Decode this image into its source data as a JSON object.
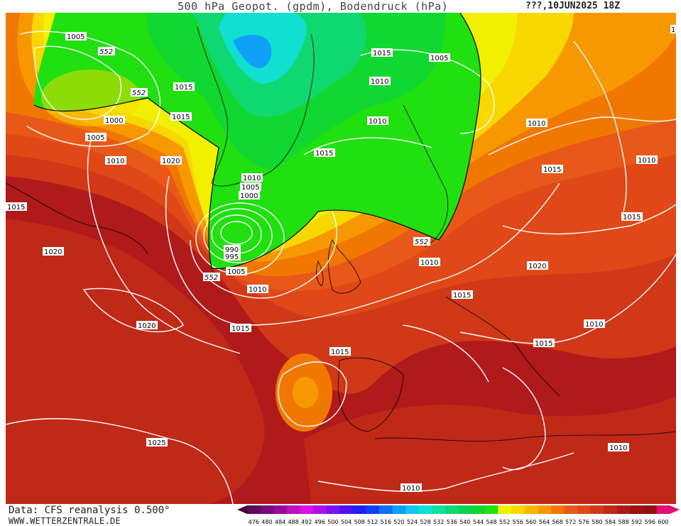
{
  "header": {
    "title": "500 hPa Geopot. (gpdm), Bodendruck (hPa)",
    "run": "???,10JUN2025 18Z"
  },
  "footer": {
    "source": "Data: CFS reanalysis 0.500°",
    "site": "WWW.WETTERZENTRALE.DE"
  },
  "legend": {
    "levels": [
      "476",
      "480",
      "484",
      "488",
      "492",
      "496",
      "500",
      "504",
      "508",
      "512",
      "516",
      "520",
      "524",
      "528",
      "532",
      "536",
      "540",
      "544",
      "548",
      "552",
      "556",
      "560",
      "564",
      "568",
      "572",
      "576",
      "580",
      "584",
      "588",
      "592",
      "596",
      "600"
    ],
    "colors": [
      "#5a0a5a",
      "#7a0a7a",
      "#9a0a9a",
      "#c010c0",
      "#e010e0",
      "#b010e8",
      "#8010f0",
      "#5010f0",
      "#2020f0",
      "#1040f8",
      "#1070f8",
      "#10a0f8",
      "#10c8f0",
      "#10e0d0",
      "#10e0a0",
      "#10d870",
      "#10d050",
      "#10d830",
      "#20e010",
      "#f0f000",
      "#f8d800",
      "#f8b800",
      "#f89800",
      "#f07800",
      "#e85818",
      "#e04818",
      "#d03818",
      "#c02818",
      "#b01818",
      "#a01010",
      "#901010",
      "#e01070"
    ]
  },
  "map": {
    "geopotential_labels": [
      "552",
      "552",
      "552",
      "552"
    ],
    "isobar_labels": [
      "1005",
      "1015",
      "1005",
      "1015",
      "1010",
      "1015",
      "1000",
      "1005",
      "1010",
      "1020",
      "1015",
      "1020",
      "1010",
      "1005",
      "1000",
      "990",
      "995",
      "1005",
      "1010",
      "1015",
      "1020",
      "1015",
      "1015",
      "1010",
      "1010",
      "1015",
      "1010",
      "1015",
      "1020",
      "1010",
      "1015",
      "1010",
      "1015",
      "1025",
      "1010",
      "1010",
      "1"
    ],
    "colors": {
      "isobar": "#ffffff",
      "coastline": "#000000"
    }
  }
}
